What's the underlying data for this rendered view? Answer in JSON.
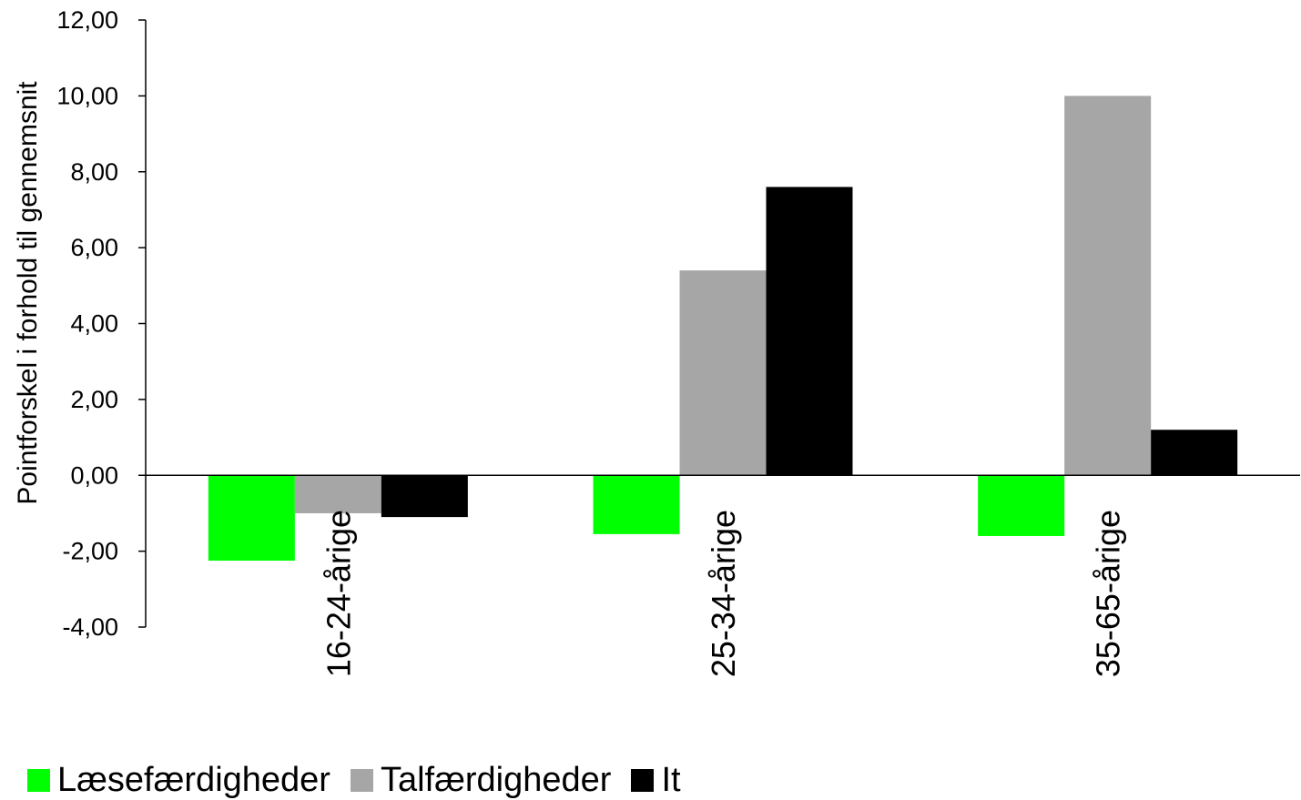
{
  "chart_data": {
    "type": "bar",
    "categories": [
      "16-24-årige",
      "25-34-årige",
      "35-65-årige"
    ],
    "series": [
      {
        "name": "Læsefærdigheder",
        "color": "#00ff00",
        "values": [
          -2.25,
          -1.55,
          -1.6
        ]
      },
      {
        "name": "Talfærdigheder",
        "color": "#a6a6a6",
        "values": [
          -1.0,
          5.4,
          10.0
        ]
      },
      {
        "name": "It",
        "color": "#000000",
        "values": [
          -1.1,
          7.6,
          1.2
        ]
      }
    ],
    "ylabel": "Pointforskel i forhold til gennemsnit",
    "xlabel": "",
    "ylim": [
      -4,
      12
    ],
    "yticks": [
      {
        "value": 12,
        "label": "12,00"
      },
      {
        "value": 10,
        "label": "10,00"
      },
      {
        "value": 8,
        "label": "8,00"
      },
      {
        "value": 6,
        "label": "6,00"
      },
      {
        "value": 4,
        "label": "4,00"
      },
      {
        "value": 2,
        "label": "2,00"
      },
      {
        "value": 0,
        "label": "0,00"
      },
      {
        "value": -2,
        "label": "-2,00"
      },
      {
        "value": -4,
        "label": "-4,00"
      }
    ],
    "grid": false,
    "legend_position": "bottom-left"
  }
}
